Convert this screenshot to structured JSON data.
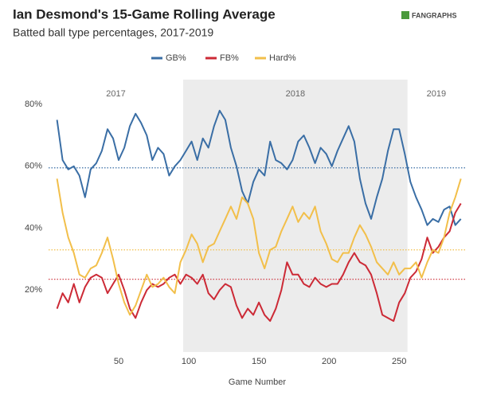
{
  "chart_data": {
    "type": "line",
    "title": "Ian Desmond's 15-Game Rolling Average",
    "subtitle": "Batted ball type percentages, 2017-2019",
    "source_logo": "FANGRAPHS",
    "xlabel": "Game Number",
    "xlim": [
      0,
      297
    ],
    "ylim": [
      0,
      88
    ],
    "xticks": [
      50,
      100,
      150,
      200,
      250
    ],
    "yticks": [
      {
        "value": 20,
        "label": "20%"
      },
      {
        "value": 40,
        "label": "40%"
      },
      {
        "value": 60,
        "label": "60%"
      },
      {
        "value": 80,
        "label": "80%"
      }
    ],
    "regions": [
      {
        "label": "2017",
        "start": 0,
        "end": 96,
        "color": "#ffffff"
      },
      {
        "label": "2018",
        "start": 96,
        "end": 256,
        "color": "#ececec"
      },
      {
        "label": "2019",
        "start": 256,
        "end": 297,
        "color": "#ffffff"
      }
    ],
    "x": [
      6,
      10,
      14,
      18,
      22,
      26,
      30,
      34,
      38,
      42,
      46,
      50,
      54,
      58,
      62,
      66,
      70,
      74,
      78,
      82,
      86,
      90,
      94,
      98,
      102,
      106,
      110,
      114,
      118,
      122,
      126,
      130,
      134,
      138,
      142,
      146,
      150,
      154,
      158,
      162,
      166,
      170,
      174,
      178,
      182,
      186,
      190,
      194,
      198,
      202,
      206,
      210,
      214,
      218,
      222,
      226,
      230,
      234,
      238,
      242,
      246,
      250,
      254,
      258,
      262,
      266,
      270,
      274,
      278,
      282,
      286,
      290,
      294
    ],
    "series": [
      {
        "name": "GB%",
        "color": "#3a6ea5",
        "mean": 59.5,
        "values": [
          75,
          62,
          59,
          60,
          57,
          50,
          59,
          61,
          65,
          72,
          69,
          62,
          66,
          73,
          77,
          74,
          70,
          62,
          66,
          64,
          57,
          60,
          62,
          65,
          68,
          62,
          69,
          66,
          73,
          78,
          75,
          66,
          60,
          52,
          48,
          55,
          59,
          57,
          68,
          62,
          61,
          59,
          62,
          68,
          70,
          66,
          61,
          66,
          64,
          60,
          65,
          69,
          73,
          68,
          56,
          48,
          43,
          50,
          56,
          65,
          72,
          72,
          64,
          55,
          50,
          46,
          41,
          43,
          42,
          46,
          47,
          41,
          43
        ]
      },
      {
        "name": "FB%",
        "color": "#cc2a36",
        "mean": 23.5,
        "values": [
          14,
          19,
          16,
          22,
          16,
          21,
          24,
          25,
          24,
          19,
          22,
          25,
          20,
          14,
          11,
          16,
          20,
          22,
          21,
          22,
          24,
          25,
          22,
          25,
          24,
          22,
          25,
          19,
          17,
          20,
          22,
          21,
          15,
          11,
          14,
          12,
          16,
          12,
          10,
          14,
          20,
          29,
          25,
          25,
          22,
          21,
          24,
          22,
          21,
          22,
          22,
          25,
          29,
          32,
          29,
          28,
          25,
          19,
          12,
          11,
          10,
          16,
          19,
          24,
          26,
          30,
          37,
          32,
          34,
          37,
          39,
          45,
          48
        ]
      },
      {
        "name": "Hard%",
        "color": "#f2bf4a",
        "mean": 33,
        "values": [
          56,
          45,
          37,
          32,
          25,
          24,
          27,
          28,
          32,
          37,
          30,
          22,
          16,
          12,
          15,
          20,
          25,
          21,
          22,
          24,
          21,
          19,
          29,
          33,
          38,
          35,
          29,
          34,
          35,
          39,
          43,
          47,
          43,
          50,
          48,
          43,
          32,
          27,
          33,
          34,
          39,
          43,
          47,
          42,
          45,
          43,
          47,
          39,
          35,
          30,
          29,
          32,
          32,
          37,
          41,
          38,
          34,
          29,
          27,
          25,
          29,
          25,
          27,
          27,
          29,
          24,
          29,
          33,
          32,
          37,
          45,
          50,
          56
        ]
      }
    ]
  }
}
